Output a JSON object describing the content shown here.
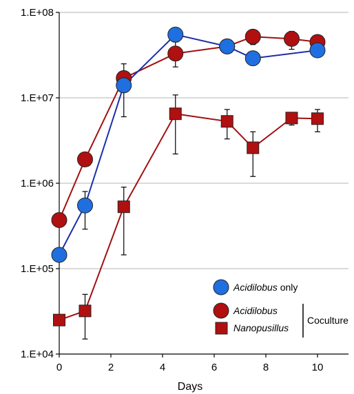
{
  "chart_data": {
    "type": "line",
    "xlabel": "Days",
    "ylabel": "",
    "title": "",
    "y_scale": "log",
    "xlim": [
      0,
      11.2
    ],
    "ylim": [
      10000,
      100000000
    ],
    "x_ticks": [
      0,
      2,
      4,
      6,
      8,
      10
    ],
    "x_tick_labels": [
      "0",
      "2",
      "4",
      "6",
      "8",
      "10"
    ],
    "y_ticks": [
      10000,
      100000,
      1000000,
      10000000,
      100000000
    ],
    "y_tick_labels": [
      "1.E+04",
      "1.E+05",
      "1.E+06",
      "1.E+07",
      "1.E+08"
    ],
    "grid": "horizontal",
    "legend_position": "bottom-right",
    "series": [
      {
        "name": "Acidilobus only",
        "name_italic": "Acidilobus",
        "name_suffix": " only",
        "color": "#1f6fe0",
        "line_color": "#1a2fa8",
        "marker": "circle",
        "x": [
          0,
          1,
          2.5,
          4.5,
          6.5,
          7.5,
          10
        ],
        "y": [
          145000,
          550000,
          14000000,
          55000000,
          40000000,
          29000000,
          36000000
        ],
        "y_err_low": [
          null,
          290000,
          6000000,
          null,
          null,
          null,
          null
        ],
        "y_err_high": [
          null,
          800000,
          20000000,
          null,
          null,
          null,
          null
        ]
      },
      {
        "name": "Acidilobus",
        "color": "#b01010",
        "line_color": "#a01010",
        "marker": "circle",
        "x": [
          0,
          1,
          2.5,
          4.5,
          6.5,
          7.5,
          9,
          10
        ],
        "y": [
          370000,
          1900000,
          17000000,
          33000000,
          40000000,
          52000000,
          49000000,
          45000000
        ],
        "y_err_low": [
          null,
          null,
          null,
          23000000,
          null,
          42000000,
          37000000,
          null
        ],
        "y_err_high": [
          null,
          null,
          25000000,
          45000000,
          null,
          62000000,
          60000000,
          null
        ]
      },
      {
        "name": "Nanopusillus",
        "color": "#b01010",
        "line_color": "#a01010",
        "marker": "square",
        "x": [
          0,
          1,
          2.5,
          4.5,
          6.5,
          7.5,
          9,
          10
        ],
        "y": [
          25000,
          32000,
          530000,
          6500000,
          5300000,
          2600000,
          5800000,
          5700000
        ],
        "y_err_low": [
          null,
          15000,
          145000,
          2200000,
          3300000,
          1200000,
          4800000,
          4000000
        ],
        "y_err_high": [
          null,
          50000,
          900000,
          10800000,
          7300000,
          4000000,
          6700000,
          7300000
        ]
      }
    ],
    "legend": {
      "bracket_label": "Coculture"
    }
  }
}
